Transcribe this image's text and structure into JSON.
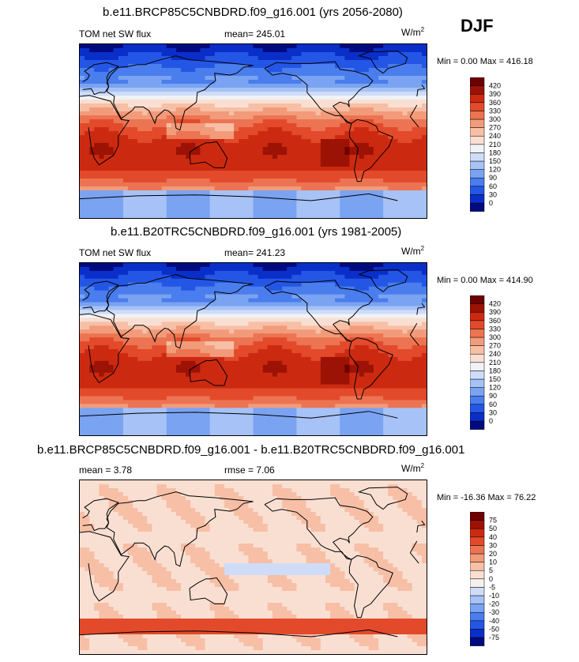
{
  "season": "DJF",
  "panels": [
    {
      "title": "b.e11.BRCP85C5CNBDRD.f09_g16.001 (yrs 2056-2080)",
      "left_label": "TOM net SW flux",
      "center_label": "mean= 245.01",
      "units": "W/m",
      "units_sup": "2",
      "minmax": "Min =   0.00 Max = 416.18"
    },
    {
      "title": "b.e11.B20TRC5CNBDRD.f09_g16.001 (yrs 1981-2005)",
      "left_label": "TOM net SW flux",
      "center_label": "mean= 241.23",
      "units": "W/m",
      "units_sup": "2",
      "minmax": "Min =   0.00 Max = 414.90"
    },
    {
      "title": "b.e11.BRCP85C5CNBDRD.f09_g16.001 - b.e11.B20TRC5CNBDRD.f09_g16.001",
      "left_label": "mean =   3.78",
      "center_label": "rmse =   7.06",
      "units": "W/m",
      "units_sup": "2",
      "minmax": "Min = -16.36 Max =  76.22"
    }
  ],
  "chart_data": [
    {
      "type": "heatmap",
      "title": "b.e11.BRCP85C5CNBDRD.f09_g16.001 (yrs 2056-2080)",
      "variable": "TOM net SW flux",
      "mean": 245.01,
      "min": 0.0,
      "max": 416.18,
      "units": "W/m2",
      "colorbar_levels": [
        0,
        30,
        60,
        90,
        120,
        150,
        180,
        210,
        240,
        270,
        300,
        330,
        360,
        390,
        420
      ],
      "colorbar_colors": [
        "#000a80",
        "#0a2fc9",
        "#2456e6",
        "#4a7ded",
        "#7aa3f2",
        "#a6c2f6",
        "#cfdcf8",
        "#f0f2f6",
        "#f9dfd2",
        "#f7bfa6",
        "#f29b7a",
        "#ec7452",
        "#e24a2b",
        "#cc2a10",
        "#9c1205",
        "#6e0000"
      ]
    },
    {
      "type": "heatmap",
      "title": "b.e11.B20TRC5CNBDRD.f09_g16.001 (yrs 1981-2005)",
      "variable": "TOM net SW flux",
      "mean": 241.23,
      "min": 0.0,
      "max": 414.9,
      "units": "W/m2",
      "colorbar_levels": [
        0,
        30,
        60,
        90,
        120,
        150,
        180,
        210,
        240,
        270,
        300,
        330,
        360,
        390,
        420
      ],
      "colorbar_colors": [
        "#000a80",
        "#0a2fc9",
        "#2456e6",
        "#4a7ded",
        "#7aa3f2",
        "#a6c2f6",
        "#cfdcf8",
        "#f0f2f6",
        "#f9dfd2",
        "#f7bfa6",
        "#f29b7a",
        "#ec7452",
        "#e24a2b",
        "#cc2a10",
        "#9c1205",
        "#6e0000"
      ]
    },
    {
      "type": "heatmap",
      "title": "b.e11.BRCP85C5CNBDRD.f09_g16.001 - b.e11.B20TRC5CNBDRD.f09_g16.001",
      "mean": 3.78,
      "rmse": 7.06,
      "min": -16.36,
      "max": 76.22,
      "units": "W/m2",
      "colorbar_levels": [
        -75,
        -50,
        -40,
        -30,
        -20,
        -10,
        -5,
        0,
        5,
        10,
        20,
        30,
        40,
        50,
        75
      ],
      "colorbar_colors": [
        "#000a80",
        "#0a2fc9",
        "#2456e6",
        "#4a7ded",
        "#7aa3f2",
        "#a6c2f6",
        "#cfdcf8",
        "#f4f1ee",
        "#f9dfd2",
        "#f7bfa6",
        "#f29b7a",
        "#ec7452",
        "#e24a2b",
        "#cc2a10",
        "#9c1205",
        "#6e0000"
      ]
    }
  ]
}
